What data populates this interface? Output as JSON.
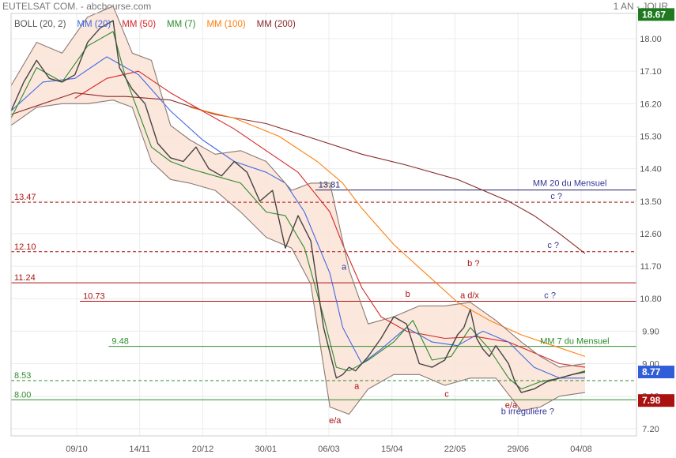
{
  "header": {
    "title": "EUTELSAT COM. - abcbourse.com",
    "period": "1 AN - JOUR"
  },
  "legend": [
    {
      "label": "BOLL (20, 2)",
      "color": "#555555"
    },
    {
      "label": "MM (20)",
      "color": "#4169e1"
    },
    {
      "label": "MM (50)",
      "color": "#d62728"
    },
    {
      "label": "MM (7)",
      "color": "#2e8b2e"
    },
    {
      "label": "MM (100)",
      "color": "#ff7f0e"
    },
    {
      "label": "MM (200)",
      "color": "#8b2a2a"
    }
  ],
  "colors": {
    "up": "#2e8b2e",
    "down": "#cc2222",
    "band_fill": "#fbe3d6",
    "band_line": "#8a7a72",
    "annotation_red": "#aa1111",
    "annotation_blue": "#333399"
  },
  "chart_data": {
    "type": "line",
    "title": "EUTELSAT COM.",
    "x_ticks": [
      "09/10",
      "14/11",
      "20/12",
      "30/01",
      "06/03",
      "15/04",
      "22/05",
      "29/06",
      "04/08"
    ],
    "y_ticks": [
      "7.20",
      "8.10",
      "9.00",
      "9.90",
      "10.80",
      "11.70",
      "12.60",
      "13.50",
      "14.40",
      "15.30",
      "16.20",
      "17.10",
      "18.00"
    ],
    "ylim": [
      7.0,
      18.7
    ],
    "price_badges": [
      {
        "text": "18.67",
        "value": 18.67,
        "color": "#1f7a1f"
      },
      {
        "text": "8.77",
        "value": 8.77,
        "color": "#2f5ed8"
      },
      {
        "text": "7.98",
        "value": 7.98,
        "color": "#aa1111"
      }
    ],
    "levels": [
      {
        "value": 13.81,
        "label": "13.81",
        "color": "#1f1f66",
        "dashed": false,
        "from": 0.53
      },
      {
        "value": 13.47,
        "label": "13.47",
        "color": "#aa1111",
        "dashed": true,
        "from": 0.0
      },
      {
        "value": 12.1,
        "label": "12.10",
        "color": "#aa1111",
        "dashed": true,
        "from": 0.0
      },
      {
        "value": 11.24,
        "label": "11.24",
        "color": "#aa1111",
        "dashed": false,
        "from": 0.0
      },
      {
        "value": 10.73,
        "label": "10.73",
        "color": "#aa1111",
        "dashed": false,
        "from": 0.12
      },
      {
        "value": 9.48,
        "label": "9.48",
        "color": "#2e8b2e",
        "dashed": false,
        "from": 0.17
      },
      {
        "value": 8.53,
        "label": "8.53",
        "color": "#2e8b2e",
        "dashed": true,
        "from": 0.0
      },
      {
        "value": 8.0,
        "label": "8.00",
        "color": "#2e8b2e",
        "dashed": false,
        "from": 0.0
      }
    ],
    "annotations": [
      {
        "text": "MM 20 du Mensuel",
        "color": "#333399",
        "x": 0.934,
        "y": 13.92,
        "anchor": "end",
        "size": 11
      },
      {
        "text": "c ?",
        "color": "#333399",
        "x": 0.855,
        "y": 13.56,
        "anchor": "middle",
        "size": 11
      },
      {
        "text": "c ?",
        "color": "#333399",
        "x": 0.85,
        "y": 12.2,
        "anchor": "middle",
        "size": 11
      },
      {
        "text": "b ?",
        "color": "#aa1111",
        "x": 0.725,
        "y": 11.7,
        "anchor": "middle",
        "size": 16
      },
      {
        "text": "a",
        "color": "#333399",
        "x": 0.522,
        "y": 11.6,
        "anchor": "middle",
        "size": 11
      },
      {
        "text": "b",
        "color": "#aa1111",
        "x": 0.622,
        "y": 10.85,
        "anchor": "middle",
        "size": 11
      },
      {
        "text": "a d/x",
        "color": "#aa1111",
        "x": 0.719,
        "y": 10.82,
        "anchor": "middle",
        "size": 11
      },
      {
        "text": "c ?",
        "color": "#333399",
        "x": 0.845,
        "y": 10.82,
        "anchor": "middle",
        "size": 11
      },
      {
        "text": "MM 7 du Mensuel",
        "color": "#2e8b2e",
        "x": 0.938,
        "y": 9.55,
        "anchor": "end",
        "size": 11
      },
      {
        "text": "a",
        "color": "#aa1111",
        "x": 0.542,
        "y": 8.3,
        "anchor": "middle",
        "size": 11
      },
      {
        "text": "c",
        "color": "#aa1111",
        "x": 0.683,
        "y": 8.08,
        "anchor": "middle",
        "size": 11
      },
      {
        "text": "e/a",
        "color": "#aa1111",
        "x": 0.784,
        "y": 7.78,
        "anchor": "middle",
        "size": 11
      },
      {
        "text": "b irrégulière ?",
        "color": "#333399",
        "x": 0.81,
        "y": 7.6,
        "anchor": "middle",
        "size": 11
      },
      {
        "text": "e/a",
        "color": "#aa1111",
        "x": 0.508,
        "y": 7.35,
        "anchor": "middle",
        "size": 16
      }
    ],
    "series": [
      {
        "name": "MM (200)",
        "color": "#8b2a2a",
        "x": [
          0,
          0.05,
          0.1,
          0.15,
          0.18,
          0.25,
          0.32,
          0.4,
          0.48,
          0.55,
          0.62,
          0.7,
          0.78,
          0.82,
          0.86,
          0.9
        ],
        "y": [
          15.9,
          16.2,
          16.5,
          16.4,
          16.4,
          16.3,
          15.9,
          15.65,
          15.2,
          14.8,
          14.5,
          14.1,
          13.5,
          13.1,
          12.6,
          12.05
        ]
      },
      {
        "name": "MM (100)",
        "color": "#ff7f0e",
        "x": [
          0.28,
          0.35,
          0.42,
          0.48,
          0.52,
          0.55,
          0.6,
          0.65,
          0.7,
          0.75,
          0.8,
          0.85,
          0.9
        ],
        "y": [
          16.1,
          15.8,
          15.3,
          14.6,
          14.0,
          13.3,
          12.3,
          11.5,
          10.7,
          10.2,
          9.8,
          9.5,
          9.2
        ]
      },
      {
        "name": "MM (50)",
        "color": "#d62728",
        "x": [
          0.1,
          0.15,
          0.2,
          0.25,
          0.3,
          0.35,
          0.4,
          0.45,
          0.5,
          0.52,
          0.55,
          0.58,
          0.62,
          0.68,
          0.73,
          0.78,
          0.82,
          0.86,
          0.9
        ],
        "y": [
          16.35,
          16.9,
          17.1,
          16.5,
          16.0,
          15.5,
          14.9,
          14.3,
          13.2,
          12.3,
          11.1,
          10.3,
          9.9,
          9.7,
          9.75,
          9.6,
          9.3,
          9.0,
          8.9
        ]
      },
      {
        "name": "MM (20)",
        "color": "#4169e1",
        "x": [
          0,
          0.05,
          0.1,
          0.15,
          0.2,
          0.25,
          0.3,
          0.35,
          0.4,
          0.43,
          0.46,
          0.5,
          0.52,
          0.55,
          0.58,
          0.62,
          0.66,
          0.7,
          0.74,
          0.78,
          0.82,
          0.86,
          0.9
        ],
        "y": [
          16.0,
          16.8,
          16.9,
          17.5,
          17.0,
          16.0,
          15.2,
          14.6,
          14.3,
          14.0,
          13.2,
          11.5,
          10.0,
          9.0,
          9.4,
          10.0,
          9.6,
          9.5,
          9.9,
          9.6,
          8.9,
          8.6,
          8.6
        ]
      },
      {
        "name": "MM (7)",
        "color": "#2e8b2e",
        "x": [
          0,
          0.04,
          0.08,
          0.12,
          0.16,
          0.18,
          0.22,
          0.25,
          0.28,
          0.32,
          0.36,
          0.4,
          0.43,
          0.46,
          0.49,
          0.51,
          0.53,
          0.56,
          0.6,
          0.63,
          0.66,
          0.69,
          0.72,
          0.75,
          0.78,
          0.8,
          0.83,
          0.86,
          0.9
        ],
        "y": [
          15.8,
          17.2,
          16.8,
          17.8,
          18.2,
          16.9,
          15.0,
          14.6,
          14.4,
          14.2,
          14.0,
          13.2,
          13.1,
          12.2,
          10.3,
          8.9,
          8.8,
          9.1,
          9.6,
          10.2,
          9.1,
          9.2,
          10.0,
          9.4,
          8.6,
          8.3,
          8.5,
          8.6,
          8.8
        ]
      },
      {
        "name": "BOLL upper",
        "color": "#8a7a72",
        "x": [
          0,
          0.04,
          0.08,
          0.12,
          0.16,
          0.19,
          0.22,
          0.25,
          0.28,
          0.32,
          0.36,
          0.4,
          0.44,
          0.47,
          0.5,
          0.53,
          0.56,
          0.6,
          0.64,
          0.68,
          0.72,
          0.76,
          0.8,
          0.83,
          0.86,
          0.9
        ],
        "y": [
          16.7,
          17.9,
          17.6,
          18.6,
          18.9,
          17.6,
          17.4,
          15.6,
          15.2,
          14.8,
          14.9,
          14.6,
          13.8,
          14.0,
          14.0,
          11.6,
          10.1,
          10.3,
          10.6,
          10.6,
          10.7,
          10.2,
          9.6,
          9.2,
          8.9,
          9.0
        ]
      },
      {
        "name": "BOLL lower",
        "color": "#8a7a72",
        "x": [
          0,
          0.04,
          0.08,
          0.12,
          0.16,
          0.19,
          0.22,
          0.25,
          0.28,
          0.32,
          0.36,
          0.4,
          0.44,
          0.47,
          0.5,
          0.53,
          0.56,
          0.6,
          0.64,
          0.68,
          0.72,
          0.76,
          0.8,
          0.83,
          0.86,
          0.9
        ],
        "y": [
          15.6,
          16.1,
          16.2,
          16.2,
          16.3,
          16.1,
          14.6,
          14.1,
          14.0,
          13.8,
          13.2,
          12.5,
          12.2,
          11.2,
          7.8,
          7.6,
          8.3,
          8.7,
          8.7,
          8.4,
          8.6,
          8.6,
          7.7,
          7.8,
          8.1,
          8.2
        ]
      },
      {
        "name": "Price",
        "color": "#444444",
        "x": [
          0,
          0.02,
          0.04,
          0.06,
          0.08,
          0.1,
          0.12,
          0.14,
          0.16,
          0.17,
          0.18,
          0.19,
          0.21,
          0.23,
          0.25,
          0.27,
          0.29,
          0.31,
          0.33,
          0.35,
          0.37,
          0.39,
          0.41,
          0.43,
          0.45,
          0.47,
          0.48,
          0.49,
          0.5,
          0.51,
          0.52,
          0.53,
          0.54,
          0.56,
          0.58,
          0.6,
          0.62,
          0.64,
          0.66,
          0.68,
          0.7,
          0.71,
          0.72,
          0.73,
          0.74,
          0.75,
          0.76,
          0.78,
          0.79,
          0.8,
          0.82,
          0.84,
          0.86,
          0.88,
          0.9
        ],
        "y": [
          16.0,
          16.8,
          17.4,
          16.9,
          16.8,
          17.0,
          17.9,
          18.3,
          18.5,
          17.2,
          16.9,
          16.6,
          16.2,
          15.1,
          14.7,
          14.6,
          15.0,
          14.4,
          14.2,
          14.6,
          14.3,
          13.5,
          13.8,
          12.2,
          13.1,
          12.4,
          11.2,
          10.0,
          9.3,
          8.6,
          8.7,
          8.9,
          8.8,
          9.2,
          9.7,
          10.3,
          10.1,
          9.0,
          8.9,
          9.1,
          9.8,
          10.0,
          10.5,
          9.7,
          9.4,
          9.2,
          9.5,
          9.0,
          8.5,
          8.2,
          8.3,
          8.5,
          8.6,
          8.7,
          8.77
        ]
      }
    ]
  }
}
